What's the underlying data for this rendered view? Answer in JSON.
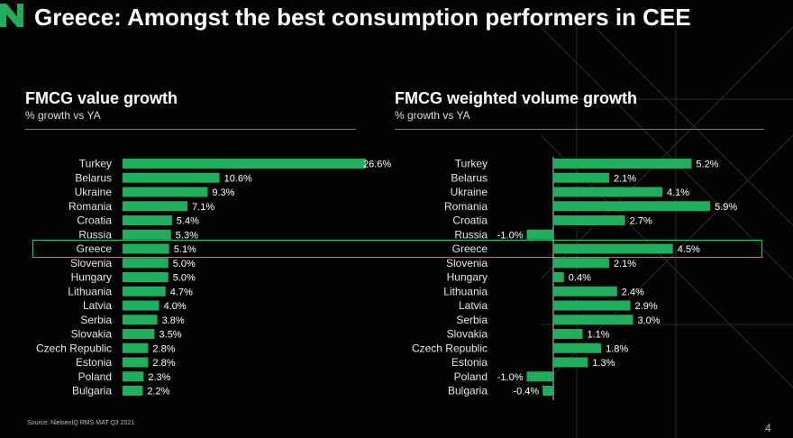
{
  "title": "Greece: Amongst the best consumption performers in CEE",
  "source": "Source: NielsenIQ RMS MAT Q3 2021",
  "page_number": "4",
  "highlight_category": "Greece",
  "colors": {
    "bar": "#1fae5b",
    "highlight": "#2fc55a",
    "logo": "#1fae5b"
  },
  "chart_data": [
    {
      "type": "bar",
      "orientation": "horizontal",
      "title": "FMCG value growth",
      "subtitle": "% growth vs YA",
      "categories": [
        "Turkey",
        "Belarus",
        "Ukraine",
        "Romania",
        "Croatia",
        "Russia",
        "Greece",
        "Slovenia",
        "Hungary",
        "Lithuania",
        "Latvia",
        "Serbia",
        "Slovakia",
        "Czech Republic",
        "Estonia",
        "Poland",
        "Bulgaria"
      ],
      "values": [
        26.6,
        10.6,
        9.3,
        7.1,
        5.4,
        5.3,
        5.1,
        5.0,
        5.0,
        4.7,
        4.0,
        3.8,
        3.5,
        2.8,
        2.8,
        2.3,
        2.2
      ],
      "labels": [
        "26.6%",
        "10.6%",
        "9.3%",
        "7.1%",
        "5.4%",
        "5.3%",
        "5.1%",
        "5.0%",
        "5.0%",
        "4.7%",
        "4.0%",
        "3.8%",
        "3.5%",
        "2.8%",
        "2.8%",
        "2.3%",
        "2.2%"
      ],
      "xlim": [
        0,
        26.6
      ]
    },
    {
      "type": "bar",
      "orientation": "horizontal",
      "title": "FMCG weighted volume growth",
      "subtitle": "% growth vs YA",
      "categories": [
        "Turkey",
        "Belarus",
        "Ukraine",
        "Romania",
        "Croatia",
        "Russia",
        "Greece",
        "Slovenia",
        "Hungary",
        "Lithuania",
        "Latvia",
        "Serbia",
        "Slovakia",
        "Czech Republic",
        "Estonia",
        "Poland",
        "Bulgaria"
      ],
      "values": [
        5.2,
        2.1,
        4.1,
        5.9,
        2.7,
        -1.0,
        4.5,
        2.1,
        0.4,
        2.4,
        2.9,
        3.0,
        1.1,
        1.8,
        1.3,
        -1.0,
        -0.4
      ],
      "labels": [
        "5.2%",
        "2.1%",
        "4.1%",
        "5.9%",
        "2.7%",
        "-1.0%",
        "4.5%",
        "2.1%",
        "0.4%",
        "2.4%",
        "2.9%",
        "3.0%",
        "1.1%",
        "1.8%",
        "1.3%",
        "-1.0%",
        "-0.4%"
      ],
      "xlim": [
        -1.0,
        5.9
      ]
    }
  ]
}
